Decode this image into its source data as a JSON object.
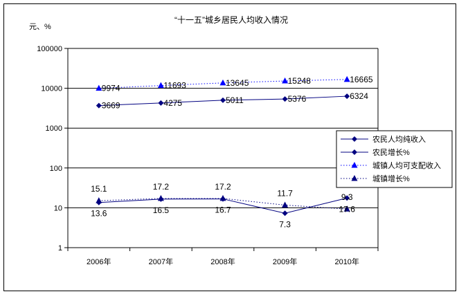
{
  "chart_data": {
    "type": "line",
    "title": "“十一五”城乡居民人均收入情况",
    "ylabel": "元、%",
    "xlabel": "",
    "categories": [
      "2006年",
      "2007年",
      "2008年",
      "2009年",
      "2010年"
    ],
    "y_scale": "log",
    "ylim": [
      1,
      100000
    ],
    "y_ticks": [
      "1",
      "10",
      "100",
      "1000",
      "10000",
      "100000"
    ],
    "grid": "horizontal major gridlines",
    "legend_position": "right",
    "series": [
      {
        "name": "农民人均纯收入",
        "values": [
          3669,
          4275,
          5011,
          5376,
          6324
        ],
        "color": "#000080",
        "line_style": "solid",
        "marker": "diamond"
      },
      {
        "name": "农民增长%",
        "values": [
          13.6,
          16.5,
          16.7,
          7.3,
          17.6
        ],
        "color": "#000080",
        "line_style": "solid",
        "marker": "diamond"
      },
      {
        "name": "城镇人均可支配收入",
        "values": [
          9974,
          11693,
          13645,
          15248,
          16665
        ],
        "color": "#0000ff",
        "line_style": "dotted",
        "marker": "triangle"
      },
      {
        "name": "城镇增长%",
        "values": [
          15.1,
          17.2,
          17.2,
          11.7,
          9.3
        ],
        "color": "#000080",
        "line_style": "dotted",
        "marker": "triangle"
      }
    ],
    "data_labels": [
      {
        "text": "3669",
        "series": 0,
        "index": 0
      },
      {
        "text": "4275",
        "series": 0,
        "index": 1
      },
      {
        "text": "5011",
        "series": 0,
        "index": 2
      },
      {
        "text": "5376",
        "series": 0,
        "index": 3
      },
      {
        "text": "6324",
        "series": 0,
        "index": 4
      },
      {
        "text": "9974",
        "series": 2,
        "index": 0
      },
      {
        "text": "11693",
        "series": 2,
        "index": 1
      },
      {
        "text": "13645",
        "series": 2,
        "index": 2
      },
      {
        "text": "15248",
        "series": 2,
        "index": 3
      },
      {
        "text": "16665",
        "series": 2,
        "index": 4
      },
      {
        "text": "13.6",
        "series": 1,
        "index": 0
      },
      {
        "text": "16.5",
        "series": 1,
        "index": 1
      },
      {
        "text": "16.7",
        "series": 1,
        "index": 2
      },
      {
        "text": "7.3",
        "series": 1,
        "index": 3
      },
      {
        "text": "17.6",
        "series": 1,
        "index": 4
      },
      {
        "text": "15.1",
        "series": 3,
        "index": 0
      },
      {
        "text": "17.2",
        "series": 3,
        "index": 1
      },
      {
        "text": "17.2",
        "series": 3,
        "index": 2
      },
      {
        "text": "11.7",
        "series": 3,
        "index": 3
      },
      {
        "text": "9.3",
        "series": 3,
        "index": 4
      }
    ]
  }
}
